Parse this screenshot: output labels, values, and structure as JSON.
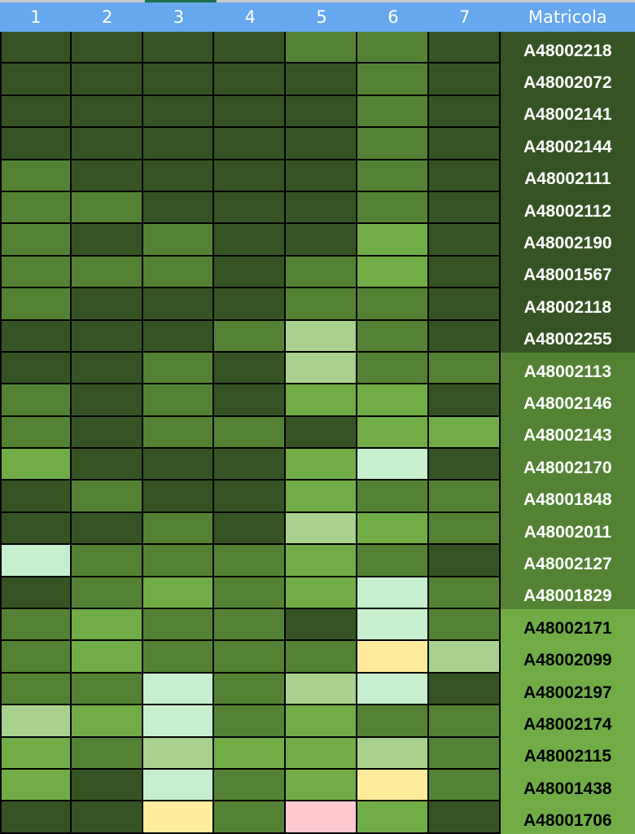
{
  "header": {
    "columns": [
      "1",
      "2",
      "3",
      "4",
      "5",
      "6",
      "7"
    ],
    "id_column": "Matricola"
  },
  "colors": {
    "header_bg": "#66a7ee",
    "D": "#365423",
    "M": "#548235",
    "L": "#70ad47",
    "P": "#a9d18e",
    "N": "#c6efce",
    "Y": "#ffeb9c",
    "K": "#ffc7ce"
  },
  "rows": [
    {
      "matricola": "A48002218",
      "cells": [
        "D",
        "D",
        "D",
        "D",
        "M",
        "M",
        "D"
      ],
      "band": "D"
    },
    {
      "matricola": "A48002072",
      "cells": [
        "D",
        "D",
        "D",
        "D",
        "D",
        "M",
        "D"
      ],
      "band": "D"
    },
    {
      "matricola": "A48002141",
      "cells": [
        "D",
        "D",
        "D",
        "D",
        "D",
        "M",
        "D"
      ],
      "band": "D"
    },
    {
      "matricola": "A48002144",
      "cells": [
        "D",
        "D",
        "D",
        "D",
        "D",
        "M",
        "D"
      ],
      "band": "D"
    },
    {
      "matricola": "A48002111",
      "cells": [
        "M",
        "D",
        "D",
        "D",
        "D",
        "M",
        "D"
      ],
      "band": "D"
    },
    {
      "matricola": "A48002112",
      "cells": [
        "M",
        "M",
        "D",
        "D",
        "D",
        "M",
        "D"
      ],
      "band": "D"
    },
    {
      "matricola": "A48002190",
      "cells": [
        "M",
        "D",
        "M",
        "D",
        "D",
        "L",
        "D"
      ],
      "band": "D"
    },
    {
      "matricola": "A48001567",
      "cells": [
        "M",
        "M",
        "M",
        "D",
        "M",
        "L",
        "D"
      ],
      "band": "D"
    },
    {
      "matricola": "A48002118",
      "cells": [
        "M",
        "D",
        "D",
        "D",
        "M",
        "M",
        "D"
      ],
      "band": "D"
    },
    {
      "matricola": "A48002255",
      "cells": [
        "D",
        "D",
        "D",
        "M",
        "P",
        "M",
        "D"
      ],
      "band": "D"
    },
    {
      "matricola": "A48002113",
      "cells": [
        "D",
        "D",
        "M",
        "D",
        "P",
        "M",
        "M"
      ],
      "band": "M"
    },
    {
      "matricola": "A48002146",
      "cells": [
        "M",
        "D",
        "M",
        "D",
        "L",
        "L",
        "D"
      ],
      "band": "M"
    },
    {
      "matricola": "A48002143",
      "cells": [
        "M",
        "D",
        "M",
        "M",
        "D",
        "L",
        "L"
      ],
      "band": "M"
    },
    {
      "matricola": "A48002170",
      "cells": [
        "L",
        "D",
        "D",
        "D",
        "L",
        "N",
        "D"
      ],
      "band": "M"
    },
    {
      "matricola": "A48001848",
      "cells": [
        "D",
        "M",
        "D",
        "D",
        "L",
        "M",
        "M"
      ],
      "band": "M"
    },
    {
      "matricola": "A48002011",
      "cells": [
        "D",
        "D",
        "M",
        "D",
        "P",
        "L",
        "M"
      ],
      "band": "M"
    },
    {
      "matricola": "A48002127",
      "cells": [
        "N",
        "M",
        "M",
        "M",
        "L",
        "M",
        "D"
      ],
      "band": "M"
    },
    {
      "matricola": "A48001829",
      "cells": [
        "D",
        "M",
        "L",
        "M",
        "L",
        "N",
        "M"
      ],
      "band": "M"
    },
    {
      "matricola": "A48002171",
      "cells": [
        "M",
        "L",
        "M",
        "M",
        "D",
        "N",
        "M"
      ],
      "band": "L"
    },
    {
      "matricola": "A48002099",
      "cells": [
        "M",
        "L",
        "M",
        "M",
        "M",
        "Y",
        "P"
      ],
      "band": "L"
    },
    {
      "matricola": "A48002197",
      "cells": [
        "M",
        "M",
        "N",
        "M",
        "P",
        "N",
        "D"
      ],
      "band": "L"
    },
    {
      "matricola": "A48002174",
      "cells": [
        "P",
        "L",
        "N",
        "M",
        "L",
        "M",
        "M"
      ],
      "band": "L"
    },
    {
      "matricola": "A48002115",
      "cells": [
        "L",
        "M",
        "P",
        "L",
        "L",
        "P",
        "M"
      ],
      "band": "L"
    },
    {
      "matricola": "A48001438",
      "cells": [
        "L",
        "D",
        "N",
        "M",
        "L",
        "Y",
        "M"
      ],
      "band": "L"
    },
    {
      "matricola": "A48001706",
      "cells": [
        "D",
        "D",
        "Y",
        "M",
        "K",
        "L",
        "D"
      ],
      "band": "L"
    }
  ]
}
